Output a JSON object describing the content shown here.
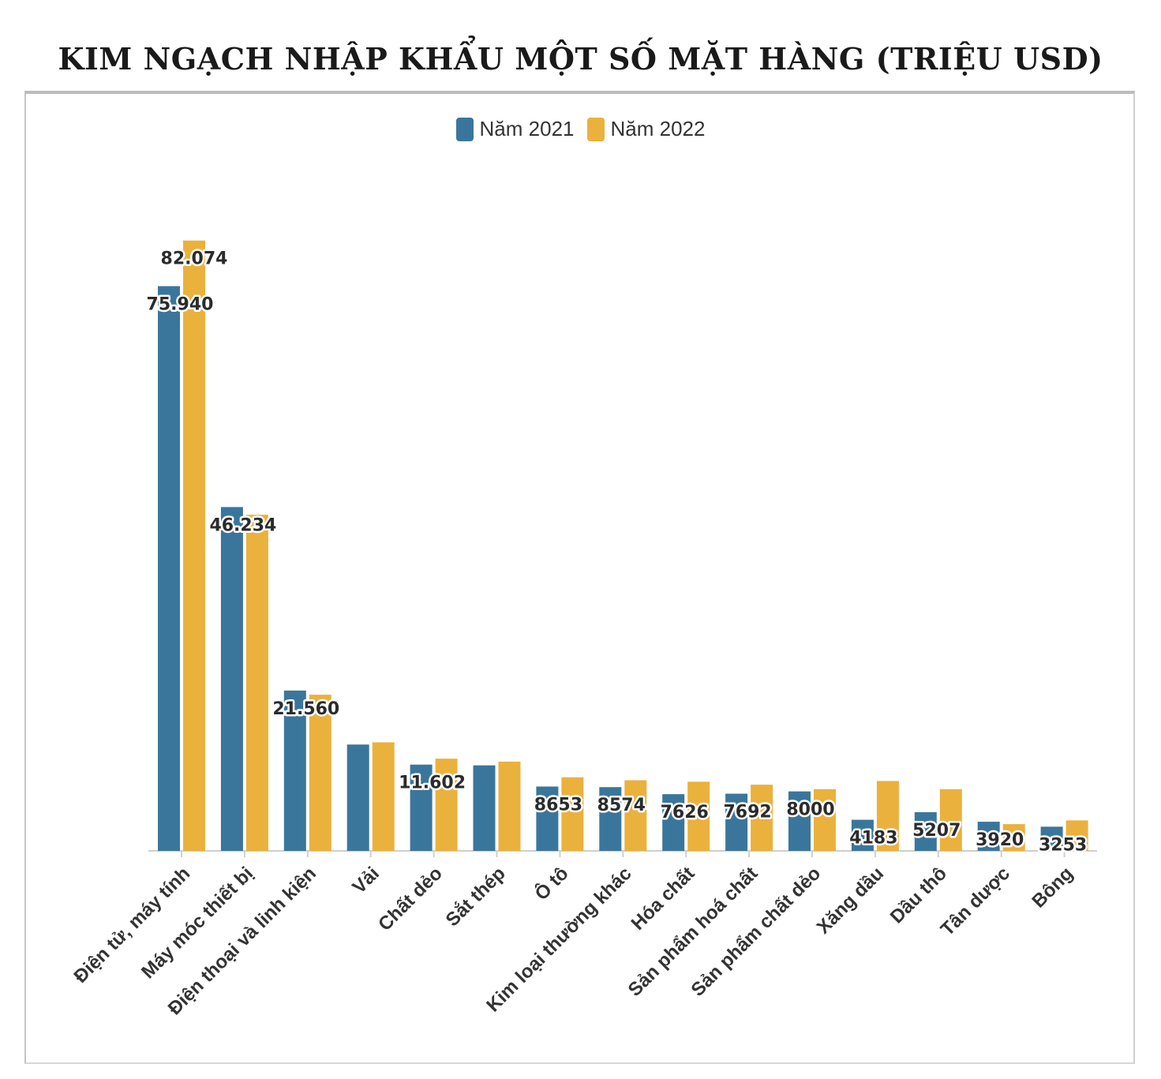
{
  "page": {
    "title": "KIM NGẠCH NHẬP KHẨU MỘT SỐ MẶT HÀNG (TRIỆU USD)"
  },
  "legend": {
    "items": [
      {
        "label": "Năm 2021",
        "color": "#3a769c"
      },
      {
        "label": "Năm 2022",
        "color": "#ebb13d"
      }
    ]
  },
  "chart_data": {
    "type": "bar",
    "title": "KIM NGẠCH NHẬP KHẨU MỘT SỐ MẶT HÀNG (TRIỆU USD)",
    "xlabel": "",
    "ylabel": "",
    "ylim": [
      0,
      83000
    ],
    "grid": false,
    "legend_position": "top-center",
    "categories": [
      "Điện tử, máy tính",
      "Máy móc thiết bị",
      "Điện thoại và linh kiện",
      "Vải",
      "Chất dẻo",
      "Sắt thép",
      "Ô tô",
      "Kim loại thường khác",
      "Hóa chất",
      "Sản phẩm hoá chất",
      "Sản phẩm chất dẻo",
      "Xăng dầu",
      "Dầu thô",
      "Tân dược",
      "Bông"
    ],
    "series": [
      {
        "name": "Năm 2021",
        "color": "#3a769c",
        "values": [
          75940,
          46234,
          21560,
          14300,
          11602,
          11500,
          8653,
          8574,
          7626,
          7692,
          8000,
          4183,
          5207,
          3920,
          3253
        ]
      },
      {
        "name": "Năm 2022",
        "color": "#ebb13d",
        "values": [
          82074,
          45200,
          21000,
          14600,
          12400,
          12000,
          9900,
          9500,
          9300,
          8900,
          8300,
          9400,
          8300,
          3600,
          4100
        ]
      }
    ],
    "data_labels": [
      {
        "series": 1,
        "index": 0,
        "text": "82.074"
      },
      {
        "series": 0,
        "index": 0,
        "text": "75.940"
      },
      {
        "series": 0,
        "index": 1,
        "text": "46.234"
      },
      {
        "series": 0,
        "index": 2,
        "text": "21.560"
      },
      {
        "series": 0,
        "index": 4,
        "text": "11.602"
      },
      {
        "series": 0,
        "index": 6,
        "text": "8653"
      },
      {
        "series": 0,
        "index": 7,
        "text": "8574"
      },
      {
        "series": 0,
        "index": 8,
        "text": "7626"
      },
      {
        "series": 0,
        "index": 9,
        "text": "7692"
      },
      {
        "series": 0,
        "index": 10,
        "text": "8000"
      },
      {
        "series": 0,
        "index": 11,
        "text": "4183"
      },
      {
        "series": 0,
        "index": 12,
        "text": "5207"
      },
      {
        "series": 0,
        "index": 13,
        "text": "3920"
      },
      {
        "series": 0,
        "index": 14,
        "text": "3253"
      }
    ]
  }
}
